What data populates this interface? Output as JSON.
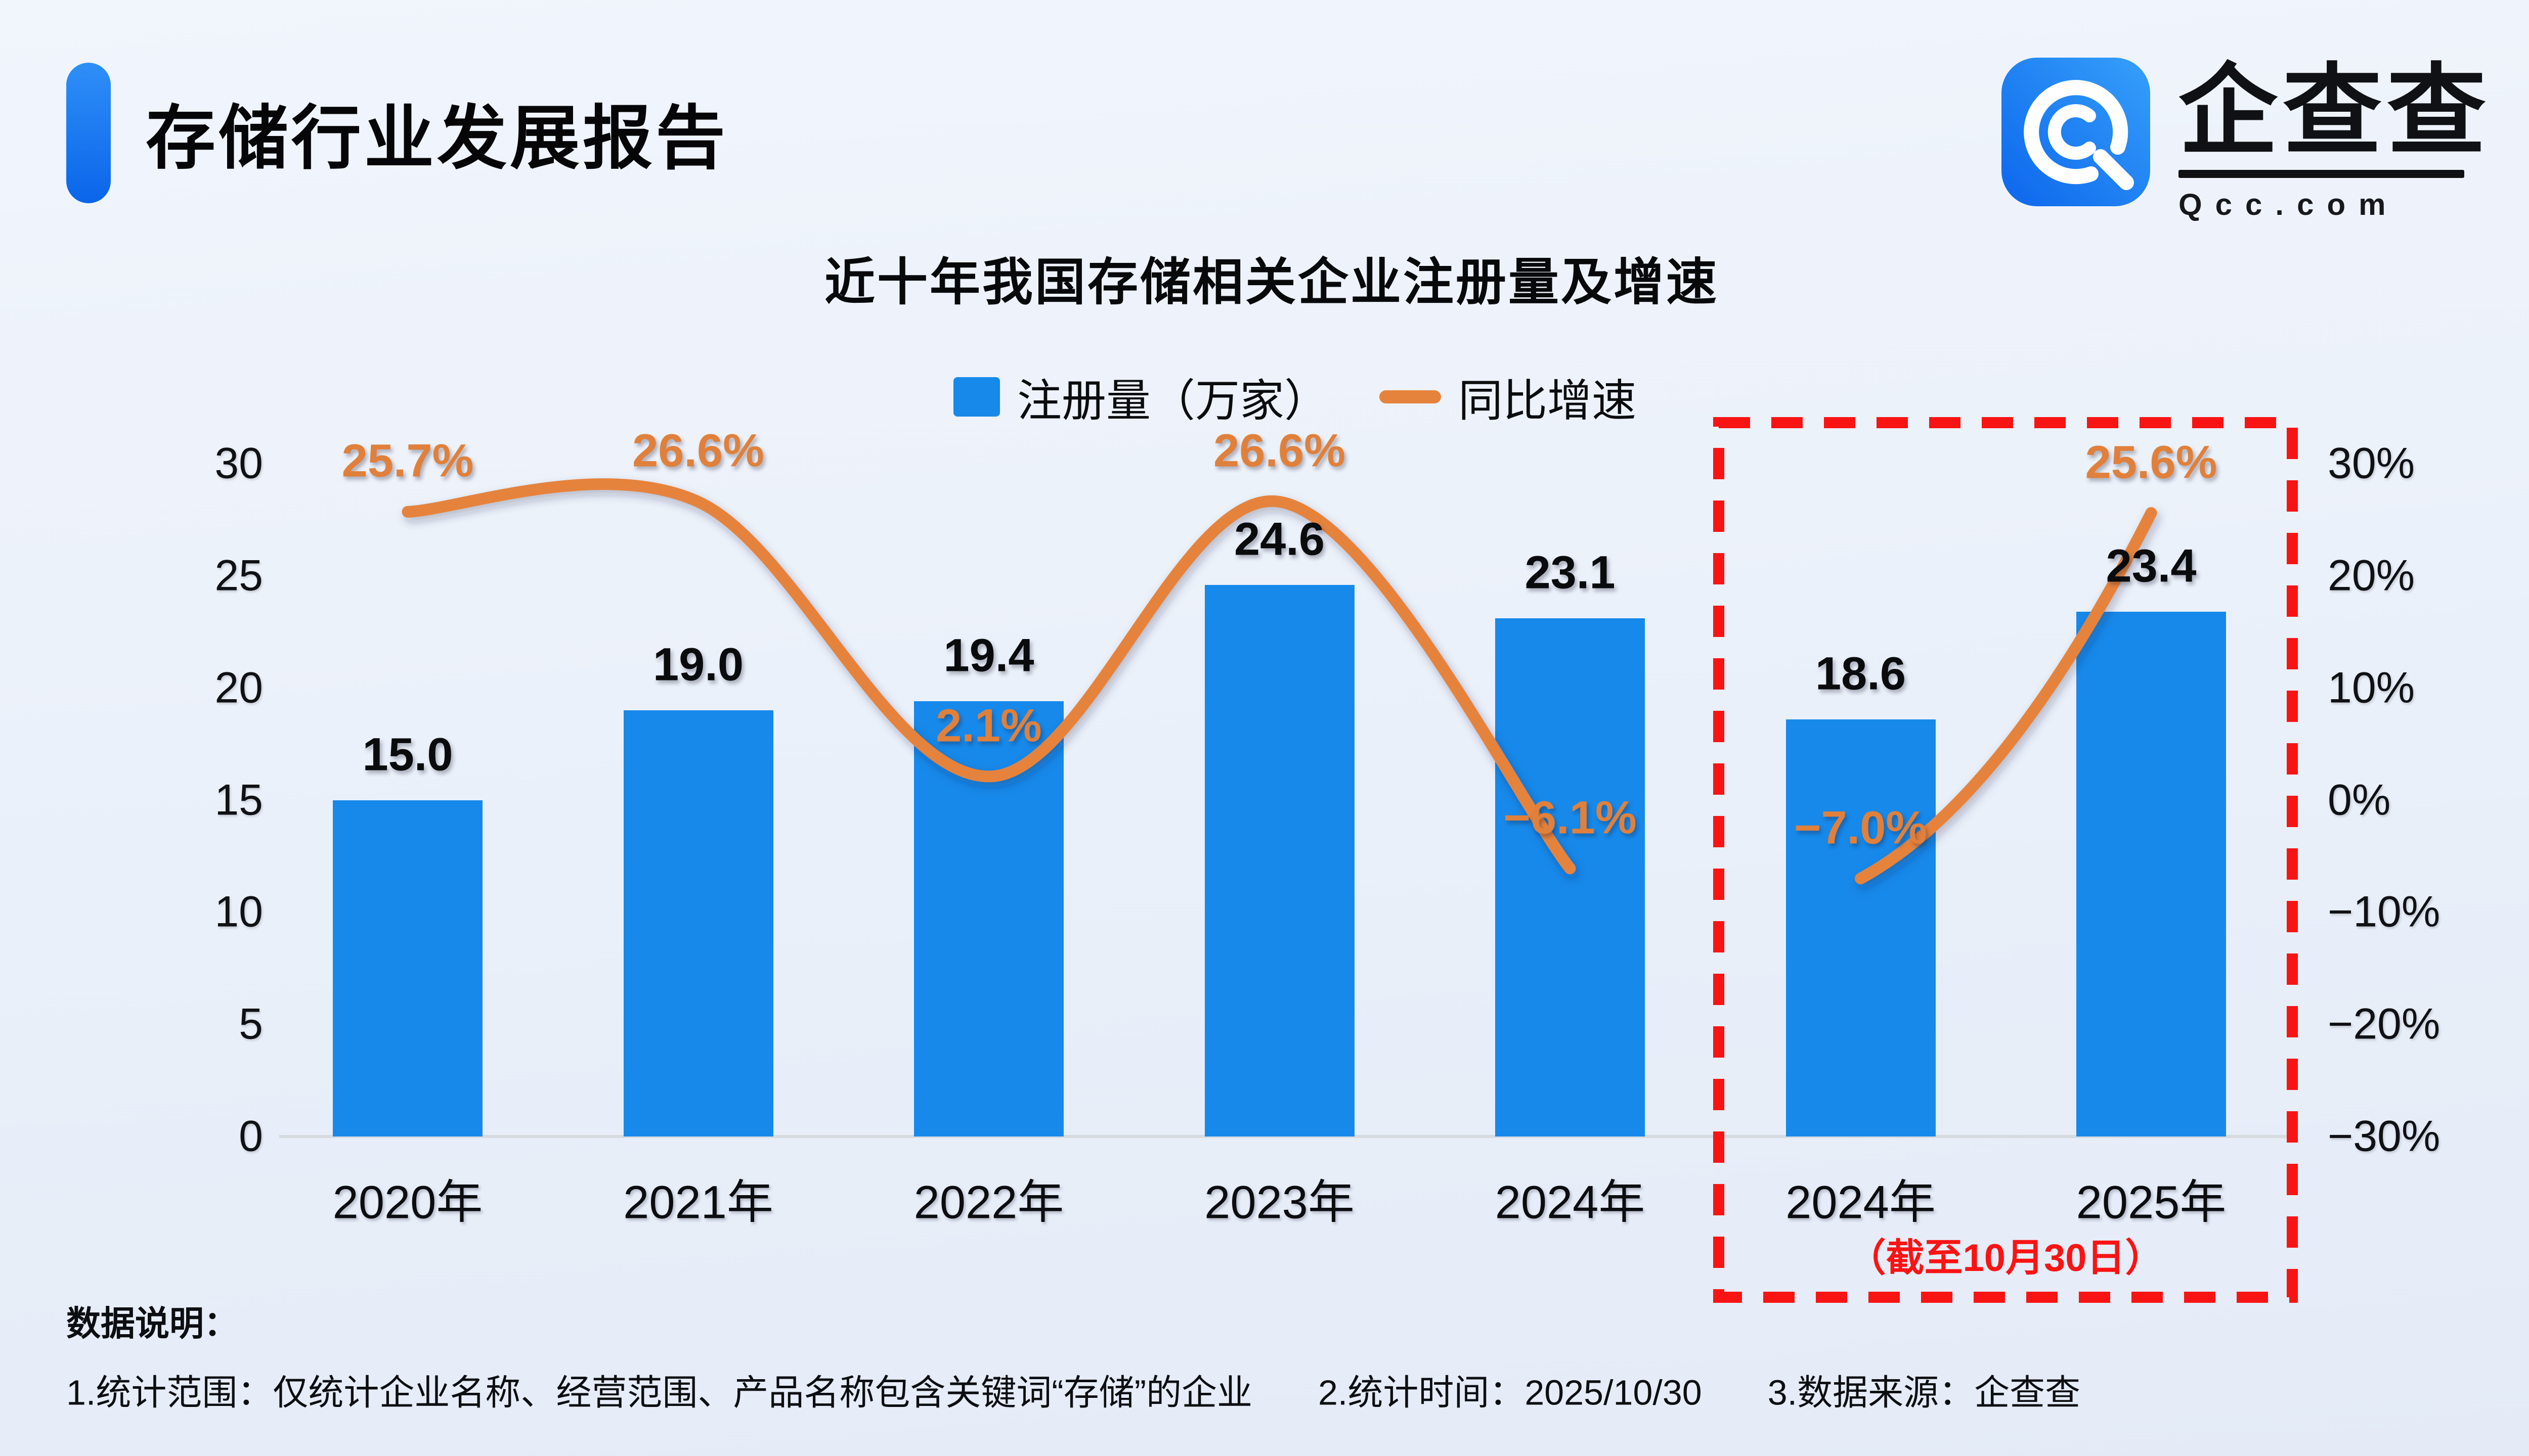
{
  "header": {
    "title": "存储行业发展报告",
    "accent_color": "#1479F2"
  },
  "logo": {
    "brand": "企查查",
    "domain": "Qcc.com",
    "icon_color": "#1b82f5"
  },
  "chart": {
    "title": "近十年我国存储相关企业注册量及增速",
    "legend_bar": "注册量（万家）",
    "legend_line": "同比增速",
    "bar_color": "#1789EA",
    "line_color": "#E5833C",
    "highlight_color": "#F91414"
  },
  "chart_data": {
    "type": "bar+line",
    "title": "近十年我国存储相关企业注册量及增速",
    "categories": [
      "2020年",
      "2021年",
      "2022年",
      "2023年",
      "2024年",
      "2024年",
      "2025年"
    ],
    "series": [
      {
        "name": "注册量（万家）",
        "type": "bar",
        "color": "#1789EA",
        "values": [
          15.0,
          19.0,
          19.4,
          24.6,
          23.1,
          18.6,
          23.4
        ],
        "labels": [
          "15.0",
          "19.0",
          "19.4",
          "24.6",
          "23.1",
          "18.6",
          "23.4"
        ]
      },
      {
        "name": "同比增速",
        "type": "line",
        "color": "#E5833C",
        "unit": "%",
        "values": [
          25.7,
          26.6,
          2.1,
          26.6,
          -6.1,
          -7.0,
          25.6
        ],
        "labels": [
          "25.7%",
          "26.6%",
          "2.1%",
          "26.6%",
          "−6.1%",
          "−7.0%",
          "25.6%"
        ],
        "segments": [
          [
            0,
            4
          ],
          [
            5,
            6
          ]
        ]
      }
    ],
    "left_axis": {
      "min": 0,
      "max": 30,
      "ticks": [
        30,
        25,
        20,
        15,
        10,
        5,
        0
      ],
      "labels": [
        "30",
        "25",
        "20",
        "15",
        "10",
        "5",
        "0"
      ]
    },
    "right_axis": {
      "min": -30,
      "max": 30,
      "ticks": [
        30,
        20,
        10,
        0,
        -10,
        -20,
        -30
      ],
      "labels": [
        "30%",
        "20%",
        "10%",
        "0%",
        "−10%",
        "−20%",
        "−30%"
      ]
    },
    "grid": "baseline-only",
    "legend_position": "top-center",
    "highlight_box": {
      "note": "（截至10月30日）",
      "color": "#F91414",
      "from_index": 5,
      "to_index": 6
    }
  },
  "footer": {
    "heading": "数据说明：",
    "notes": [
      "1.统计范围：仅统计企业名称、经营范围、产品名称包含关键词“存储”的企业",
      "2.统计时间：2025/10/30",
      "3.数据来源：企查查"
    ]
  }
}
